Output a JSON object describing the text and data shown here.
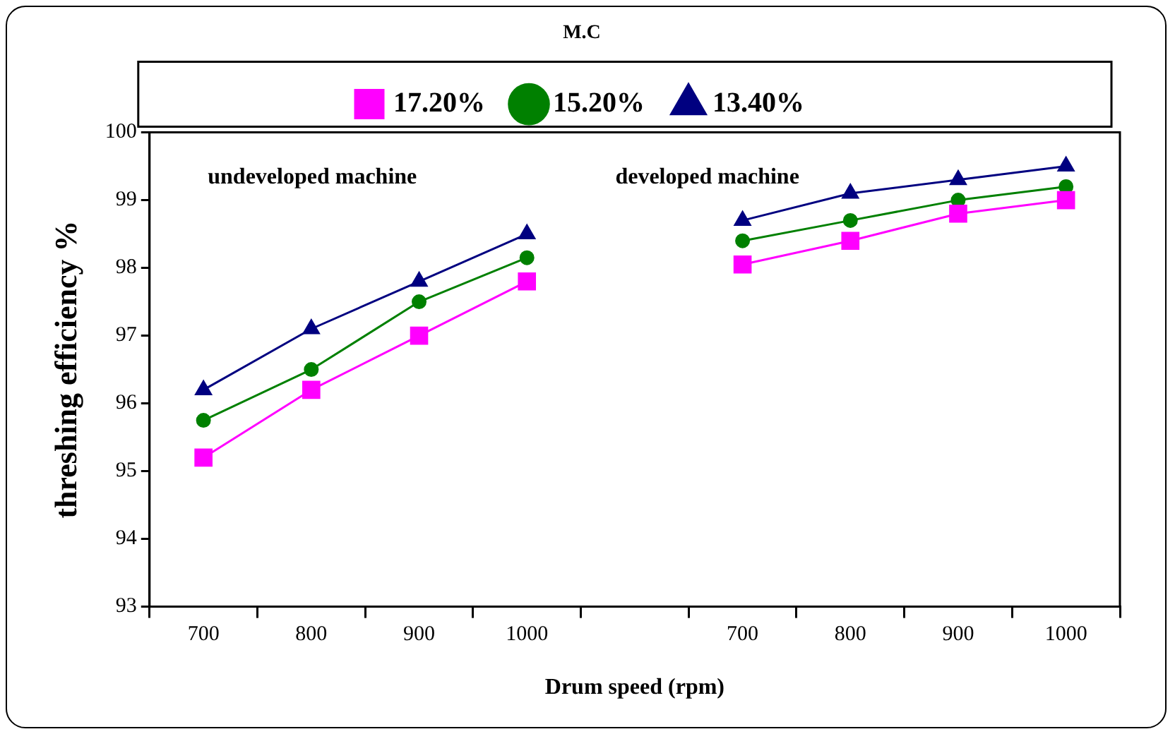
{
  "chart_data": {
    "type": "line",
    "title": "M.C",
    "xlabel": "Drum speed (rpm)",
    "ylabel": "threshing efficiency %",
    "categories": [
      "700",
      "800",
      "900",
      "1000",
      null,
      "700",
      "800",
      "900",
      "1000"
    ],
    "series": [
      {
        "name": "17.20%",
        "color": "#ff00ff",
        "marker": "square",
        "values": [
          95.2,
          96.2,
          97.0,
          97.8,
          null,
          98.05,
          98.4,
          98.8,
          99.0
        ]
      },
      {
        "name": "15.20%",
        "color": "#008000",
        "marker": "circle",
        "values": [
          95.75,
          96.5,
          97.5,
          98.15,
          null,
          98.4,
          98.7,
          99.0,
          99.2
        ]
      },
      {
        "name": "13.40%",
        "color": "#000080",
        "marker": "triangle",
        "values": [
          96.2,
          97.1,
          97.8,
          98.5,
          null,
          98.7,
          99.1,
          99.3,
          99.5
        ]
      }
    ],
    "ylim": [
      93,
      100
    ],
    "yticks": [
      93,
      94,
      95,
      96,
      97,
      98,
      99,
      100
    ],
    "grid": false,
    "legend": "top",
    "line_style": "solid",
    "annotations": [
      "undeveloped machine",
      "developed machine"
    ]
  }
}
